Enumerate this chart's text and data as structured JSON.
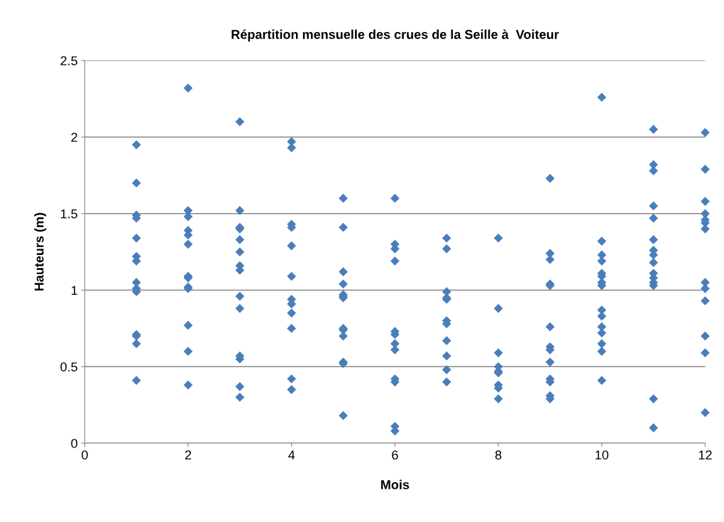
{
  "chart_data": {
    "type": "scatter",
    "title": "Répartition mensuelle des crues de la Seille à  Voiteur",
    "xlabel": "Mois",
    "ylabel": "Hauteurs (m)",
    "xlim": [
      0,
      12
    ],
    "xticks": [
      0,
      2,
      4,
      6,
      8,
      10,
      12
    ],
    "ylim": [
      0,
      2.5
    ],
    "yticks": [
      0,
      0.5,
      1,
      1.5,
      2,
      2.5
    ],
    "grid": "y",
    "marker": "diamond",
    "series": [
      {
        "color": "#4a7ebb",
        "x": [
          1,
          1,
          1,
          1,
          1,
          1,
          1,
          1,
          1,
          1,
          1,
          1,
          1,
          1,
          2,
          2,
          2,
          2,
          2,
          2,
          2,
          2,
          2,
          2,
          2,
          2,
          2,
          3,
          3,
          3,
          3,
          3,
          3,
          3,
          3,
          3,
          3,
          3,
          3,
          3,
          3,
          4,
          4,
          4,
          4,
          4,
          4,
          4,
          4,
          4,
          4,
          4,
          4,
          5,
          5,
          5,
          5,
          5,
          5,
          5,
          5,
          5,
          5,
          5,
          5,
          5,
          6,
          6,
          6,
          6,
          6,
          6,
          6,
          6,
          6,
          6,
          6,
          6,
          7,
          7,
          7,
          7,
          7,
          7,
          7,
          7,
          7,
          7,
          7,
          8,
          8,
          8,
          8,
          8,
          8,
          8,
          8,
          8,
          9,
          9,
          9,
          9,
          9,
          9,
          9,
          9,
          9,
          9,
          9,
          9,
          9,
          10,
          10,
          10,
          10,
          10,
          10,
          10,
          10,
          10,
          10,
          10,
          10,
          10,
          10,
          10,
          11,
          11,
          11,
          11,
          11,
          11,
          11,
          11,
          11,
          11,
          11,
          11,
          11,
          11,
          11,
          12,
          12,
          12,
          12,
          12,
          12,
          12,
          12,
          12,
          12,
          12,
          12,
          12
        ],
        "values": [
          1.95,
          1.7,
          1.49,
          1.47,
          1.34,
          1.22,
          1.19,
          1.05,
          1.01,
          0.99,
          0.71,
          0.7,
          0.65,
          0.41,
          2.32,
          1.52,
          1.48,
          1.39,
          1.36,
          1.3,
          1.09,
          1.08,
          1.02,
          1.01,
          0.77,
          0.6,
          0.38,
          2.1,
          1.52,
          1.41,
          1.4,
          1.33,
          1.25,
          1.16,
          1.13,
          0.96,
          0.88,
          0.57,
          0.55,
          0.37,
          0.3,
          1.97,
          1.93,
          1.43,
          1.41,
          1.29,
          1.09,
          0.94,
          0.91,
          0.85,
          0.75,
          0.42,
          0.35,
          1.6,
          1.41,
          1.12,
          1.04,
          0.97,
          0.96,
          0.95,
          0.75,
          0.74,
          0.7,
          0.53,
          0.52,
          0.18,
          1.6,
          1.3,
          1.27,
          1.19,
          0.73,
          0.71,
          0.65,
          0.61,
          0.42,
          0.4,
          0.11,
          0.08,
          1.34,
          1.27,
          0.99,
          0.95,
          0.94,
          0.8,
          0.78,
          0.67,
          0.57,
          0.48,
          0.4,
          1.34,
          0.88,
          0.59,
          0.5,
          0.47,
          0.46,
          0.38,
          0.36,
          0.29,
          1.73,
          1.24,
          1.2,
          1.04,
          1.03,
          0.76,
          0.63,
          0.61,
          0.53,
          0.42,
          0.4,
          0.31,
          0.29,
          2.26,
          1.32,
          1.23,
          1.19,
          1.11,
          1.09,
          1.05,
          1.03,
          0.87,
          0.83,
          0.76,
          0.72,
          0.65,
          0.6,
          0.41,
          2.05,
          1.82,
          1.78,
          1.55,
          1.47,
          1.33,
          1.26,
          1.23,
          1.18,
          1.11,
          1.08,
          1.05,
          1.03,
          0.29,
          0.1,
          2.03,
          1.79,
          1.58,
          1.5,
          1.46,
          1.44,
          1.4,
          1.05,
          1.01,
          0.93,
          0.7,
          0.59,
          0.2
        ]
      }
    ]
  }
}
